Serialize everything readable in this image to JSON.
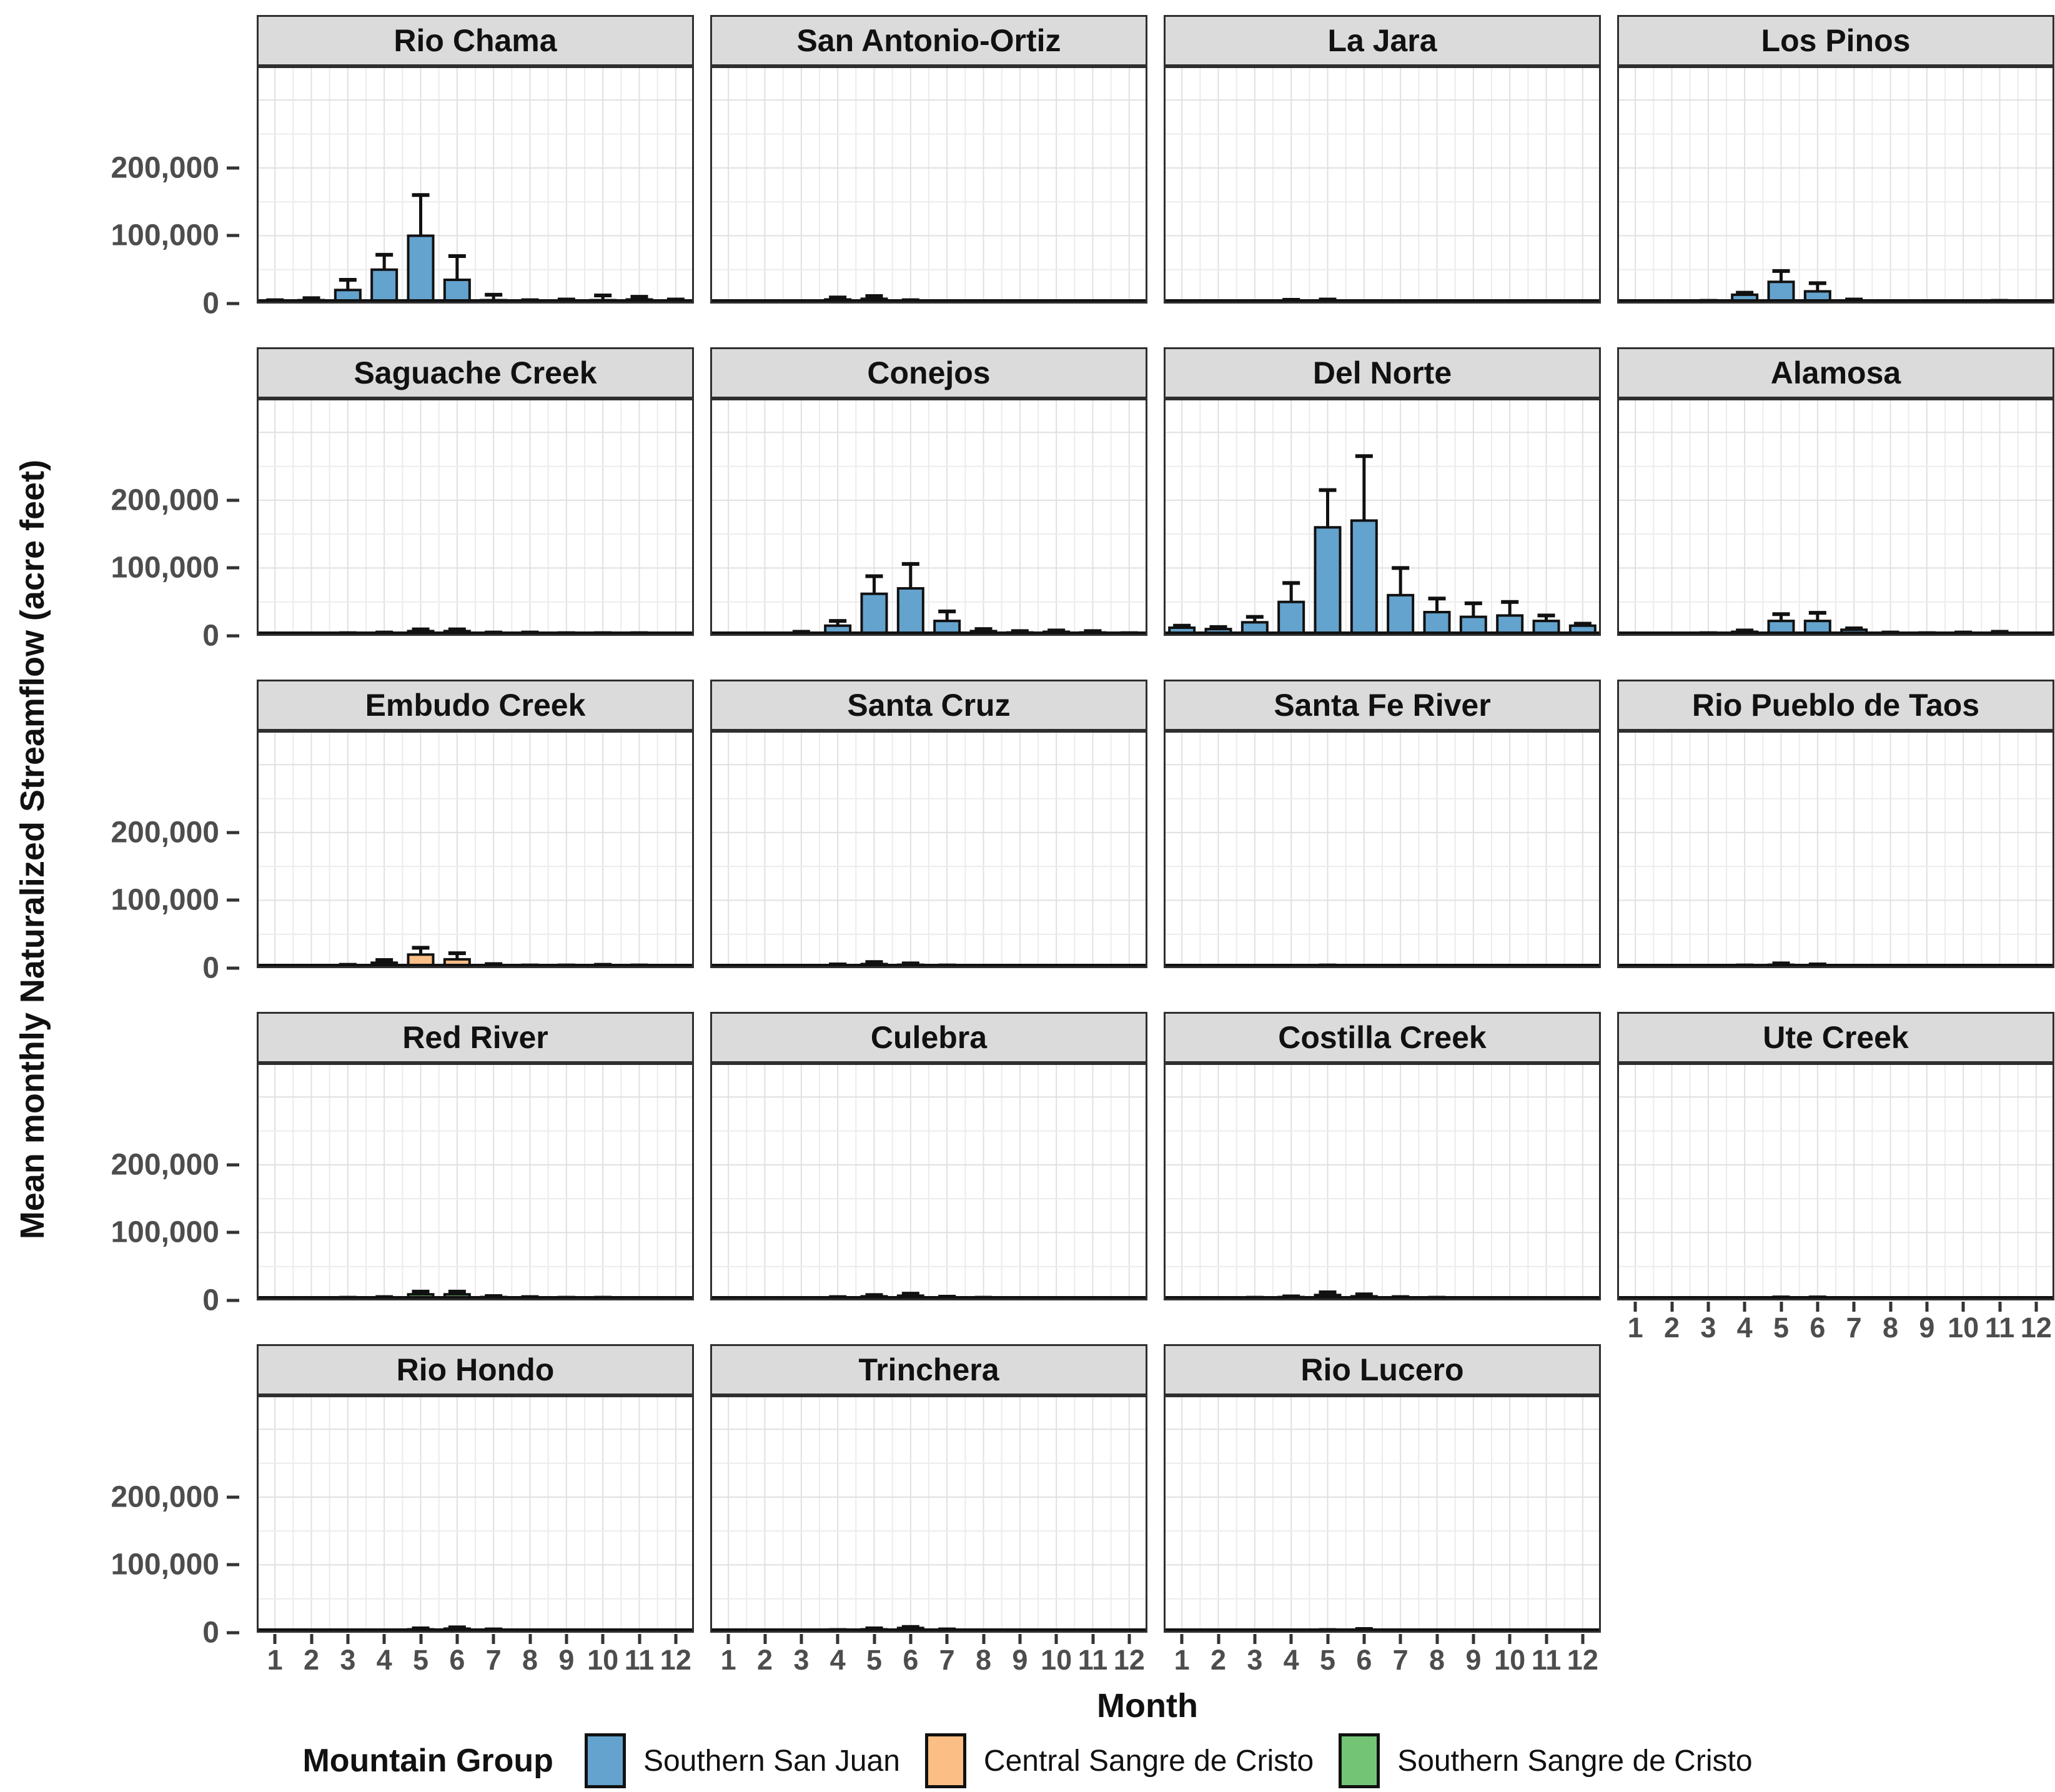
{
  "axis": {
    "y_title": "Mean monthly Naturalized Streamflow (acre feet)",
    "x_title": "Month",
    "x_tick_labels": [
      "1",
      "2",
      "3",
      "4",
      "5",
      "6",
      "7",
      "8",
      "9",
      "10",
      "11",
      "12"
    ],
    "y_ticks": [
      {
        "value": 200000,
        "label": "200,000"
      },
      {
        "value": 100000,
        "label": "100,000"
      },
      {
        "value": 0,
        "label": "0"
      }
    ]
  },
  "legend": {
    "title": "Mountain Group",
    "items": [
      {
        "label": "Southern San Juan",
        "color": "#63A3CE"
      },
      {
        "label": "Central Sangre de Cristo",
        "color": "#FBBE85"
      },
      {
        "label": "Southern Sangre de Cristo",
        "color": "#74C476"
      }
    ]
  },
  "chart_data": {
    "type": "bar",
    "title": "",
    "xlabel": "Month",
    "ylabel": "Mean monthly Naturalized Streamflow (acre feet)",
    "categories": [
      1,
      2,
      3,
      4,
      5,
      6,
      7,
      8,
      9,
      10,
      11,
      12
    ],
    "ylim": [
      0,
      350000
    ],
    "y_major_ticks": [
      0,
      100000,
      200000
    ],
    "grid": true,
    "legend_position": "bottom",
    "error_bars": "upper standard deviation whiskers",
    "units": "acre feet",
    "facets_per_row": 4,
    "facets": [
      {
        "title": "Rio Chama",
        "group": "Southern San Juan",
        "values": [
          3000,
          5000,
          20000,
          50000,
          100000,
          35000,
          5000,
          3000,
          4000,
          5000,
          6000,
          4000
        ],
        "errors_upper": [
          5000,
          8000,
          35000,
          72000,
          160000,
          70000,
          13000,
          5000,
          6000,
          12000,
          10000,
          6000
        ]
      },
      {
        "title": "San Antonio-Ortiz",
        "group": "Southern San Juan",
        "values": [
          1000,
          1000,
          2000,
          6000,
          7000,
          3000,
          1000,
          1000,
          1000,
          1000,
          1000,
          1000
        ],
        "errors_upper": [
          2000,
          2000,
          3000,
          9000,
          11000,
          5000,
          2000,
          1500,
          1500,
          1500,
          1500,
          1500
        ]
      },
      {
        "title": "La Jara",
        "group": "Southern San Juan",
        "values": [
          1000,
          1500,
          2500,
          4000,
          4000,
          2000,
          1000,
          1000,
          1000,
          1500,
          1500,
          1000
        ],
        "errors_upper": [
          1500,
          2500,
          3500,
          5500,
          6000,
          3000,
          1500,
          1500,
          1500,
          2000,
          2000,
          1500
        ]
      },
      {
        "title": "Los Pinos",
        "group": "Southern San Juan",
        "values": [
          1500,
          2000,
          3000,
          13000,
          32000,
          18000,
          4000,
          2000,
          2000,
          2500,
          3000,
          2000
        ],
        "errors_upper": [
          2000,
          2500,
          4000,
          16000,
          48000,
          30000,
          6000,
          3000,
          3000,
          3500,
          4000,
          3000
        ]
      },
      {
        "title": "Saguache Creek",
        "group": "Southern San Juan",
        "values": [
          2000,
          2000,
          3000,
          4000,
          7000,
          7000,
          4000,
          4000,
          3000,
          3000,
          3000,
          2000
        ],
        "errors_upper": [
          2500,
          2500,
          4000,
          5000,
          9500,
          9500,
          5000,
          5000,
          4000,
          4000,
          4000,
          2500
        ]
      },
      {
        "title": "Conejos",
        "group": "Southern San Juan",
        "values": [
          2000,
          2000,
          4000,
          15000,
          62000,
          70000,
          22000,
          7000,
          5000,
          6000,
          5000,
          3000
        ],
        "errors_upper": [
          3000,
          3000,
          6000,
          22000,
          88000,
          106000,
          36000,
          10000,
          7000,
          8000,
          7000,
          4000
        ]
      },
      {
        "title": "Del Norte",
        "group": "Southern San Juan",
        "values": [
          12000,
          10000,
          20000,
          50000,
          160000,
          170000,
          60000,
          35000,
          28000,
          30000,
          22000,
          15000
        ],
        "errors_upper": [
          15000,
          13000,
          28000,
          78000,
          215000,
          265000,
          100000,
          55000,
          48000,
          50000,
          30000,
          18000
        ]
      },
      {
        "title": "Alamosa",
        "group": "Southern San Juan",
        "values": [
          1000,
          1500,
          3000,
          6000,
          22000,
          22000,
          9000,
          4000,
          3000,
          4000,
          4000,
          2000
        ],
        "errors_upper": [
          1500,
          2000,
          4000,
          8000,
          32000,
          34000,
          11000,
          5000,
          4000,
          5000,
          6000,
          3000
        ]
      },
      {
        "title": "Embudo Creek",
        "group": "Central Sangre de Cristo",
        "values": [
          2000,
          2000,
          4000,
          8000,
          20000,
          13000,
          4000,
          3000,
          3000,
          3500,
          3000,
          2000
        ],
        "errors_upper": [
          3000,
          3000,
          5000,
          12000,
          30000,
          22000,
          6000,
          4000,
          4000,
          5000,
          4000,
          3000
        ]
      },
      {
        "title": "Santa Cruz",
        "group": "Central Sangre de Cristo",
        "values": [
          1000,
          1500,
          2500,
          4000,
          6000,
          5000,
          3000,
          2000,
          2000,
          2500,
          2000,
          1500
        ],
        "errors_upper": [
          1500,
          2000,
          3500,
          5500,
          9000,
          7000,
          4000,
          3000,
          3000,
          3500,
          3000,
          2000
        ]
      },
      {
        "title": "Santa Fe River",
        "group": "Central Sangre de Cristo",
        "values": [
          500,
          500,
          1000,
          1500,
          2500,
          1500,
          1000,
          500,
          500,
          500,
          500,
          500
        ],
        "errors_upper": [
          800,
          800,
          1500,
          2500,
          4000,
          2500,
          1500,
          800,
          800,
          800,
          800,
          800
        ]
      },
      {
        "title": "Rio Pueblo de Taos",
        "group": "Southern Sangre de Cristo",
        "values": [
          1000,
          1000,
          1500,
          3000,
          5000,
          4000,
          2000,
          1500,
          1000,
          1000,
          1000,
          1000
        ],
        "errors_upper": [
          1200,
          1200,
          2000,
          4000,
          7000,
          5500,
          3000,
          2000,
          1500,
          1500,
          1500,
          1200
        ]
      },
      {
        "title": "Red River",
        "group": "Southern Sangre de Cristo",
        "values": [
          2000,
          2000,
          3000,
          4000,
          9000,
          9000,
          5000,
          4000,
          3000,
          3000,
          2500,
          2000
        ],
        "errors_upper": [
          2500,
          2500,
          4000,
          5000,
          13000,
          13000,
          6500,
          5000,
          4000,
          4000,
          3000,
          2500
        ]
      },
      {
        "title": "Culebra",
        "group": "Southern Sangre de Cristo",
        "values": [
          1500,
          1500,
          2000,
          4000,
          6000,
          7000,
          4000,
          3000,
          2500,
          2500,
          2500,
          2000
        ],
        "errors_upper": [
          2000,
          2000,
          3000,
          5000,
          8000,
          10000,
          5500,
          4000,
          3000,
          3000,
          3000,
          2500
        ]
      },
      {
        "title": "Costilla Creek",
        "group": "Southern Sangre de Cristo",
        "values": [
          1500,
          2000,
          3000,
          5000,
          8000,
          6000,
          4000,
          3000,
          2000,
          2500,
          2500,
          1500
        ],
        "errors_upper": [
          2000,
          2500,
          4000,
          6000,
          12000,
          9000,
          5000,
          4000,
          3000,
          3000,
          3000,
          2000
        ]
      },
      {
        "title": "Ute Creek",
        "group": "Southern Sangre de Cristo",
        "values": [
          500,
          500,
          1000,
          2000,
          3000,
          3000,
          2000,
          1000,
          1000,
          1000,
          1000,
          500
        ],
        "errors_upper": [
          800,
          800,
          1500,
          2500,
          4500,
          4500,
          2500,
          1500,
          1500,
          1500,
          1500,
          800
        ]
      },
      {
        "title": "Rio Hondo",
        "group": "Southern Sangre de Cristo",
        "values": [
          1000,
          1000,
          2000,
          3000,
          5000,
          6000,
          4000,
          3000,
          2000,
          1500,
          1500,
          1000
        ],
        "errors_upper": [
          1200,
          1200,
          2500,
          3500,
          6500,
          8000,
          5000,
          3500,
          2500,
          2000,
          2000,
          1200
        ]
      },
      {
        "title": "Trinchera",
        "group": "Southern Sangre de Cristo",
        "values": [
          2000,
          2000,
          2500,
          3000,
          5000,
          7000,
          4000,
          2500,
          2000,
          2000,
          2000,
          2000
        ],
        "errors_upper": [
          2500,
          2500,
          3000,
          4000,
          6500,
          8500,
          5000,
          3000,
          2500,
          2500,
          2500,
          2500
        ]
      },
      {
        "title": "Rio Lucero",
        "group": "Southern Sangre de Cristo",
        "values": [
          1000,
          1000,
          1500,
          2000,
          3000,
          4000,
          3000,
          2000,
          1500,
          1500,
          1500,
          2000
        ],
        "errors_upper": [
          1200,
          1200,
          2000,
          2500,
          4000,
          5500,
          3500,
          2500,
          2000,
          2000,
          2000,
          2500
        ]
      }
    ],
    "style": {
      "panel_header_bg": "#dbdbdb",
      "panel_border": "#2f2f2f",
      "grid_minor": "#ececec",
      "grid_major": "#e0e0e0",
      "bar_outline": "#111111",
      "tick_text": "#4d4d4d"
    }
  }
}
